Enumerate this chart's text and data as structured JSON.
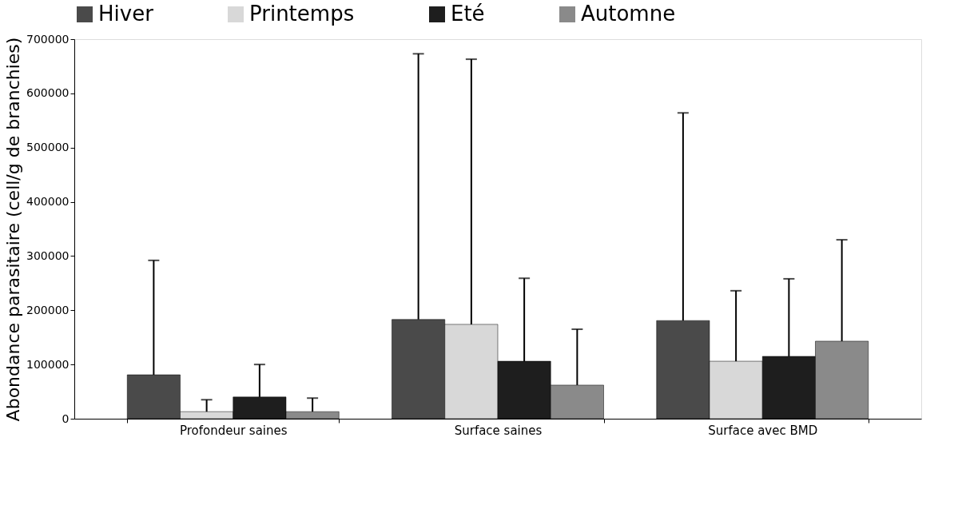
{
  "chart_data": {
    "type": "bar",
    "ylabel": "Abondance parasitaire (cell/g de branchies)",
    "categories": [
      "Profondeur saines",
      "Surface saines",
      "Surface avec BMD"
    ],
    "series": [
      {
        "name": "Hiver",
        "color": "#4a4a4a",
        "values": [
          81000,
          183000,
          181000
        ],
        "errors": [
          [
            81000,
            292000
          ],
          [
            183000,
            673000
          ],
          [
            181000,
            564000
          ]
        ]
      },
      {
        "name": "Printemps",
        "color": "#d8d8d8",
        "values": [
          13000,
          174000,
          106000
        ],
        "errors": [
          [
            13000,
            35000
          ],
          [
            174000,
            663000
          ],
          [
            106000,
            236000
          ]
        ]
      },
      {
        "name": "Eté",
        "color": "#1e1e1e",
        "values": [
          40000,
          106000,
          115000
        ],
        "errors": [
          [
            40000,
            100000
          ],
          [
            106000,
            259000
          ],
          [
            115000,
            258000
          ]
        ]
      },
      {
        "name": "Automne",
        "color": "#8a8a8a",
        "values": [
          13000,
          62000,
          143000
        ],
        "errors": [
          [
            13000,
            38000
          ],
          [
            62000,
            165000
          ],
          [
            143000,
            330000
          ]
        ]
      }
    ],
    "ylim": [
      0,
      700000
    ],
    "yticks": [
      0,
      100000,
      200000,
      300000,
      400000,
      500000,
      600000,
      700000
    ],
    "grid": false,
    "legend": "top"
  }
}
